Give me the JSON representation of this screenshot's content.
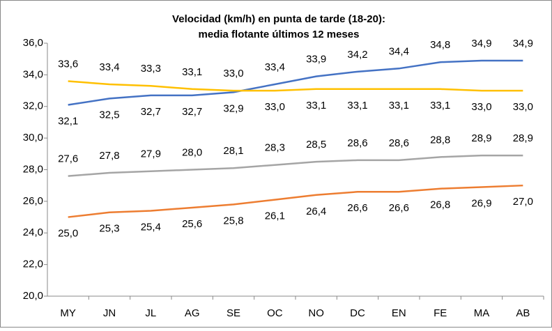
{
  "chart_data": {
    "type": "line",
    "title": "Velocidad (km/h) en punta de tarde (18-20):",
    "subtitle": "media flotante últimos 12 meses",
    "categories": [
      "MY",
      "JN",
      "JL",
      "AG",
      "SE",
      "OC",
      "NO",
      "DC",
      "EN",
      "FE",
      "MA",
      "AB"
    ],
    "series": [
      {
        "color": "#4472c4",
        "values": [
          32.1,
          32.5,
          32.7,
          32.7,
          32.9,
          33.4,
          33.9,
          34.2,
          34.4,
          34.8,
          34.9,
          34.9
        ],
        "value_labels": [
          "32,1",
          "32,5",
          "32,7",
          "32,7",
          "32,9",
          "33,4",
          "33,9",
          "34,2",
          "34,4",
          "34,8",
          "34,9",
          "34,9"
        ]
      },
      {
        "color": "#ffc000",
        "values": [
          33.6,
          33.4,
          33.3,
          33.1,
          33.0,
          33.0,
          33.1,
          33.1,
          33.1,
          33.1,
          33.0,
          33.0
        ],
        "value_labels": [
          "33,6",
          "33,4",
          "33,3",
          "33,1",
          "33,0",
          "33,0",
          "33,1",
          "33,1",
          "33,1",
          "33,1",
          "33,0",
          "33,0"
        ]
      },
      {
        "color": "#a5a5a5",
        "values": [
          27.6,
          27.8,
          27.9,
          28.0,
          28.1,
          28.3,
          28.5,
          28.6,
          28.6,
          28.8,
          28.9,
          28.9
        ],
        "value_labels": [
          "27,6",
          "27,8",
          "27,9",
          "28,0",
          "28,1",
          "28,3",
          "28,5",
          "28,6",
          "28,6",
          "28,8",
          "28,9",
          "28,9"
        ]
      },
      {
        "color": "#ed7d31",
        "values": [
          25.0,
          25.3,
          25.4,
          25.6,
          25.8,
          26.1,
          26.4,
          26.6,
          26.6,
          26.8,
          26.9,
          27.0
        ],
        "value_labels": [
          "25,0",
          "25,3",
          "25,4",
          "25,6",
          "25,8",
          "26,1",
          "26,4",
          "26,6",
          "26,6",
          "26,8",
          "26,9",
          "27,0"
        ]
      }
    ],
    "ylim": [
      20,
      36
    ],
    "yticks": [
      {
        "value": 20,
        "label": "20,0"
      },
      {
        "value": 22,
        "label": "22,0"
      },
      {
        "value": 24,
        "label": "24,0"
      },
      {
        "value": 26,
        "label": "26,0"
      },
      {
        "value": 28,
        "label": "28,0"
      },
      {
        "value": 30,
        "label": "30,0"
      },
      {
        "value": 32,
        "label": "32,0"
      },
      {
        "value": 34,
        "label": "34,0"
      },
      {
        "value": 36,
        "label": "36,0"
      }
    ],
    "grid": false
  }
}
